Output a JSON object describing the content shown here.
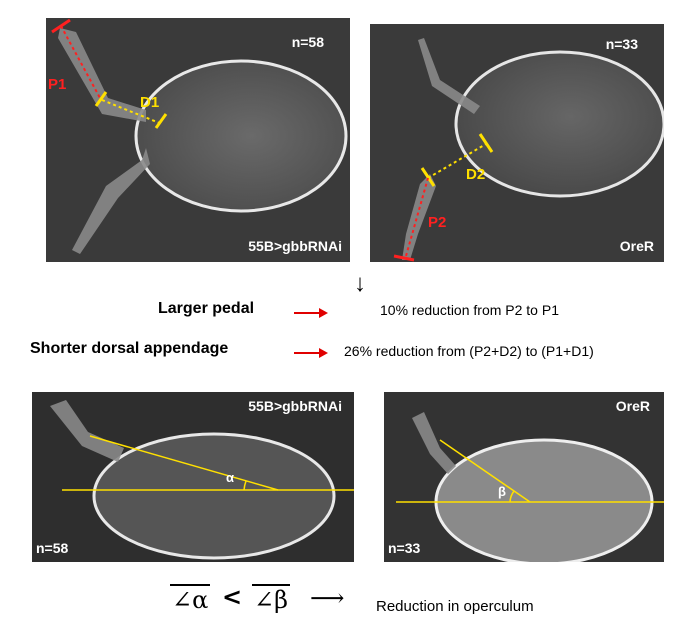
{
  "panels": {
    "top_left": {
      "n": "n=58",
      "genotype": "55B>gbbRNAi",
      "p_label": "P1",
      "d_label": "D1"
    },
    "top_right": {
      "n": "n=33",
      "genotype": "OreR",
      "p_label": "P2",
      "d_label": "D2"
    },
    "bottom_left": {
      "n": "n=58",
      "genotype": "55B>gbbRNAi",
      "angle": "α"
    },
    "bottom_right": {
      "n": "n=33",
      "genotype": "OreR",
      "angle": "β"
    }
  },
  "summary": {
    "down_arrow": "↓",
    "row1_label": "Larger pedal",
    "row1_result": "10% reduction from P2 to P1",
    "row2_label": "Shorter dorsal  appendage",
    "row2_result": "26% reduction from (P2+D2) to (P1+D1)"
  },
  "formula": {
    "angle_a": "∠α",
    "less_than": "<",
    "angle_b": "∠β",
    "arrow": "⟶",
    "result": "Reduction in operculum"
  },
  "colors": {
    "red": "#ff2020",
    "yellow": "#ffe000",
    "panel_bg": "#3a3a3a"
  }
}
